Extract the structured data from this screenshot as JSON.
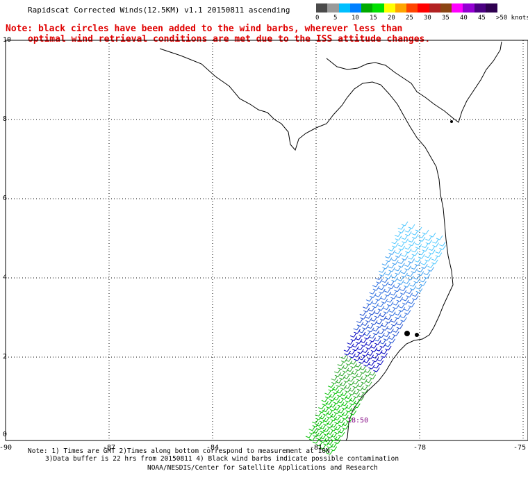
{
  "title": "Rapidscat Corrected Winds(12.5KM) v1.1 20150811 ascending",
  "note_line1": "Note: black circles have been added to the wind barbs, wherever less than",
  "note_line2": "optimal wind retrieval conditions are met due to the ISS attitude changes.",
  "legend": {
    "unit": ">50 knots",
    "labels": [
      "0",
      "5",
      "10",
      "15",
      "20",
      "25",
      "30",
      "35",
      "40",
      "45",
      ">50 knots"
    ],
    "colors": [
      "#4a4a4a",
      "#9a9a9a",
      "#00bfff",
      "#0080ff",
      "#00aa00",
      "#00e000",
      "#ffff00",
      "#ffa500",
      "#ff4500",
      "#ff0000",
      "#b22222",
      "#8b4513",
      "#ff00ff",
      "#9400d3",
      "#4b0082",
      "#2f0050"
    ]
  },
  "axes": {
    "x_ticks": [
      "-90",
      "-87",
      "-84",
      "-81",
      "-78",
      "-75"
    ],
    "y_ticks": [
      "0",
      "2",
      "4",
      "6",
      "8",
      "10"
    ]
  },
  "time_label": "18:50",
  "footer_line1": "Note: 1) Times are GMT 2)Times along bottom correspond to measurement at 10N",
  "footer_line2": "3)Data buffer is 22 hrs from 20150811 4) Black wind barbs indicate possible contamination",
  "footer_line3": "NOAA/NESDIS/Center for Satellite Applications and Research",
  "colors": {
    "note": "#e00000",
    "time_label": "#800080"
  }
}
